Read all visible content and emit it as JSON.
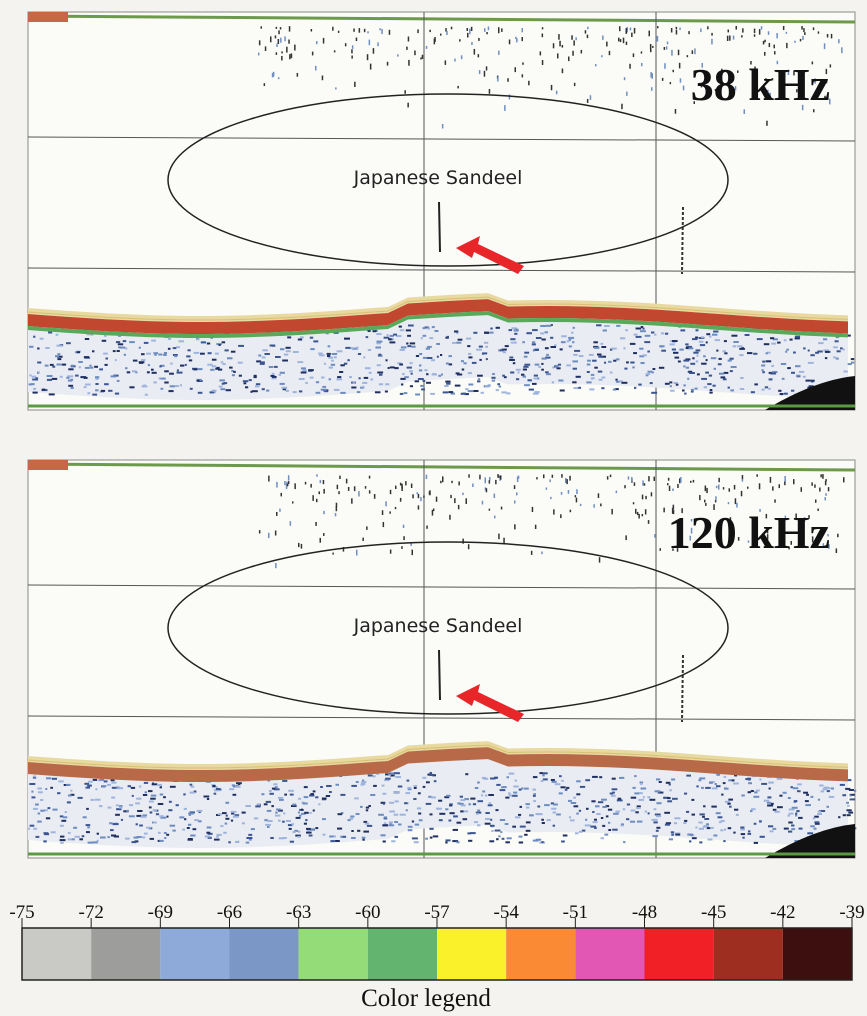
{
  "panels": [
    {
      "frequency": "38 kHz",
      "label": "Japanese Sandeel"
    },
    {
      "frequency": "120 kHz",
      "label": "Japanese Sandeel"
    }
  ],
  "legend": {
    "ticks": [
      -75,
      -72,
      -69,
      -66,
      -63,
      -60,
      -57,
      -54,
      -51,
      -48,
      -45,
      -42,
      -39
    ],
    "colors": [
      "#c9c9c6",
      "#9d9e9c",
      "#8eaad8",
      "#7b97c6",
      "#94dc78",
      "#62b46e",
      "#fbf12a",
      "#fa8a34",
      "#e256b4",
      "#f11f26",
      "#9e2e20",
      "#3d0f0e"
    ],
    "label": "Color legend"
  }
}
